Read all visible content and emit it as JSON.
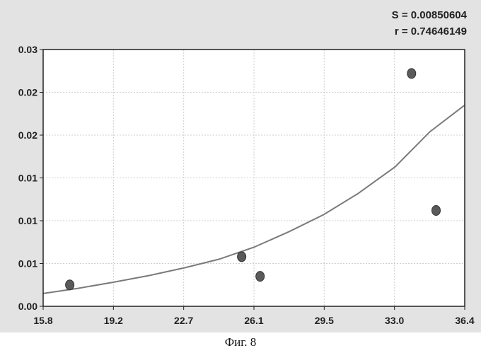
{
  "chart_data": {
    "type": "scatter",
    "title": "",
    "xlabel": "",
    "ylabel": "",
    "stats": {
      "s_label": "S = 0.00850604",
      "r_label": "r = 0.74646149"
    },
    "x_ticks": [
      "15.8",
      "19.2",
      "22.7",
      "26.1",
      "29.5",
      "33.0",
      "36.4"
    ],
    "y_ticks": [
      "0.00",
      "0.01",
      "0.01",
      "0.01",
      "0.02",
      "0.02",
      "0.03"
    ],
    "xlim": [
      15.8,
      36.4
    ],
    "ylim": [
      0.0,
      0.03
    ],
    "grid": true,
    "points": [
      {
        "x": 17.1,
        "y": 0.0025
      },
      {
        "x": 25.5,
        "y": 0.0058
      },
      {
        "x": 26.4,
        "y": 0.0035
      },
      {
        "x": 33.8,
        "y": 0.0272
      },
      {
        "x": 35.0,
        "y": 0.0112
      }
    ],
    "fit_curve": {
      "type": "exponential",
      "x": [
        15.8,
        17.5,
        19.2,
        21.0,
        22.7,
        24.4,
        26.1,
        27.8,
        29.5,
        31.2,
        33.0,
        34.7,
        36.4
      ],
      "y": [
        0.0015,
        0.0021,
        0.0028,
        0.0036,
        0.0045,
        0.0055,
        0.0069,
        0.0087,
        0.0107,
        0.0132,
        0.0163,
        0.0204,
        0.0235
      ]
    },
    "colors": {
      "background": "#e3e3e3",
      "plot_area": "#ffffff",
      "axis": "#222222",
      "grid": "#cfcfcf",
      "curve": "#7a7a7a",
      "marker": "#5a5a5a"
    }
  },
  "caption": "Фиг. 8"
}
